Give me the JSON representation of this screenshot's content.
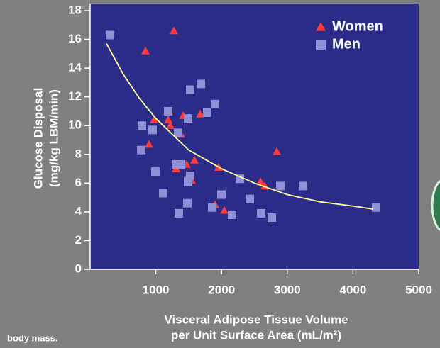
{
  "chart_data": {
    "type": "scatter",
    "y_label": [
      "Glucose Disposal",
      "(mg/kg LBM/min)"
    ],
    "x_label": [
      "Visceral Adipose Tissue Volume",
      "per Unit Surface Area (mL/m²)"
    ],
    "annotation": "body mass.",
    "xlim": [
      0,
      5000
    ],
    "ylim": [
      0,
      18
    ],
    "xticks": [
      1000,
      2000,
      3000,
      4000,
      5000
    ],
    "yticks": [
      0,
      2,
      4,
      6,
      8,
      10,
      12,
      14,
      16,
      18
    ],
    "legend": "top-right",
    "series": [
      {
        "name": "Women",
        "marker": "triangle",
        "color": "#ff3b3b",
        "x": [
          1274,
          842,
          972,
          1188,
          1220,
          1415,
          1382,
          1674,
          896,
          2840,
          1587,
          1307,
          1469,
          1955,
          1490,
          1544,
          2592,
          2657,
          1901,
          2041
        ],
        "values": [
          16.6,
          15.2,
          10.4,
          10.4,
          10.0,
          10.7,
          9.4,
          10.8,
          8.7,
          8.2,
          7.6,
          7.0,
          7.3,
          7.1,
          6.5,
          6.2,
          6.1,
          5.8,
          4.5,
          4.1
        ]
      },
      {
        "name": "Men",
        "marker": "square",
        "color": "#8f8fd6",
        "x": [
          302,
          1523,
          1685,
          1188,
          1782,
          1901,
          1490,
          788,
          950,
          1339,
          778,
          1307,
          1382,
          1523,
          1490,
          994,
          1112,
          1998,
          2279,
          2894,
          3240,
          2430,
          1479,
          1857,
          1350,
          2160,
          2603,
          2765,
          4352
        ],
        "values": [
          16.3,
          12.5,
          12.9,
          11.0,
          10.9,
          11.5,
          10.5,
          10.0,
          9.7,
          9.5,
          8.3,
          7.3,
          7.3,
          6.5,
          6.1,
          6.8,
          5.3,
          5.2,
          6.3,
          5.8,
          5.8,
          4.9,
          4.6,
          4.3,
          3.9,
          3.8,
          3.9,
          3.6,
          4.3
        ]
      },
      {
        "marker": "line",
        "color": "#ffff99",
        "x": [
          250,
          500,
          750,
          1000,
          1500,
          2000,
          2500,
          3000,
          3500,
          4000,
          4300
        ],
        "values": [
          15.7,
          13.6,
          11.9,
          10.5,
          8.3,
          7.0,
          6.0,
          5.2,
          4.7,
          4.4,
          4.2
        ]
      }
    ]
  }
}
